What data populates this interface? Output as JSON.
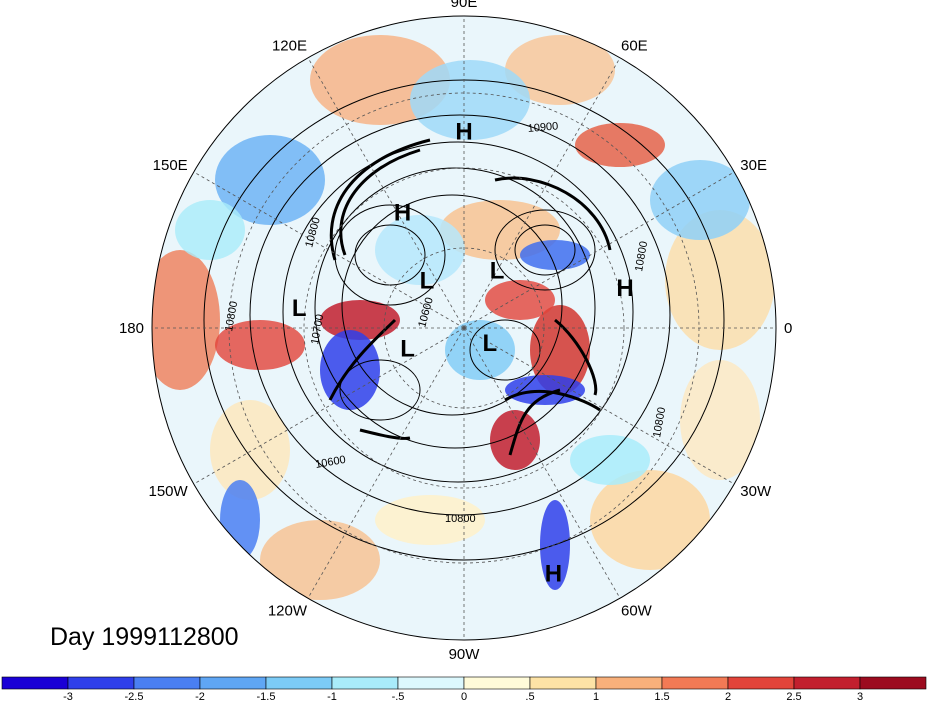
{
  "map": {
    "projection": "north-polar-stereographic",
    "center_lon_label_bottom": "90W",
    "longitude_labels": [
      {
        "text": "90E",
        "lon": 90
      },
      {
        "text": "60E",
        "lon": 60
      },
      {
        "text": "30E",
        "lon": 30
      },
      {
        "text": "0",
        "lon": 0
      },
      {
        "text": "30W",
        "lon": -30
      },
      {
        "text": "60W",
        "lon": -60
      },
      {
        "text": "90W",
        "lon": -90
      },
      {
        "text": "120W",
        "lon": -120
      },
      {
        "text": "150W",
        "lon": -150
      },
      {
        "text": "180",
        "lon": 180
      },
      {
        "text": "150E",
        "lon": 150
      },
      {
        "text": "120E",
        "lon": 120
      }
    ],
    "pressure_centers": [
      {
        "type": "H",
        "lon": 90,
        "lat": 30
      },
      {
        "type": "H",
        "lon": 118,
        "lat": 48
      },
      {
        "type": "L",
        "lon": 128,
        "lat": 70
      },
      {
        "type": "L",
        "lon": 173,
        "lat": 38
      },
      {
        "type": "L",
        "lon": 60,
        "lat": 68
      },
      {
        "type": "H",
        "lon": 14,
        "lat": 38
      },
      {
        "type": "L",
        "lon": -160,
        "lat": 70
      },
      {
        "type": "L",
        "lon": -30,
        "lat": 80
      },
      {
        "type": "H",
        "lon": -70,
        "lat": 15
      }
    ],
    "contour_labels": [
      "10900",
      "10800",
      "10700",
      "10600",
      "10800",
      "10800",
      "10800",
      "10600",
      "10800"
    ],
    "date_label": "Day 1999112800"
  },
  "colorbar": {
    "ticks": [
      "-3",
      "-2.5",
      "-2",
      "-1.5",
      "-1",
      "-.5",
      "0",
      ".5",
      "1",
      "1.5",
      "2",
      "2.5",
      "3"
    ],
    "colors": [
      "#1a00d6",
      "#2f3fea",
      "#4a7ff2",
      "#5fa6f4",
      "#7ccbf6",
      "#a9ecfa",
      "#dcf8fd",
      "#fffbd9",
      "#fde3a6",
      "#f8b07b",
      "#f27a55",
      "#e2443a",
      "#c21f2e",
      "#9c0b1f"
    ]
  }
}
